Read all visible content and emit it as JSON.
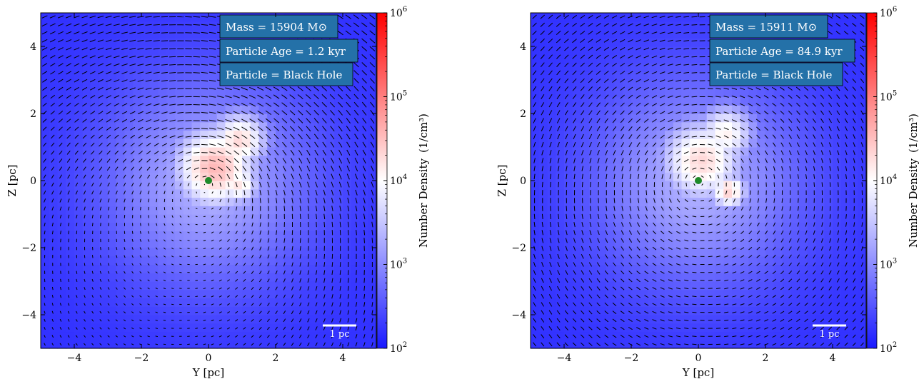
{
  "chart_data": [
    {
      "type": "heatmap",
      "title": "",
      "xlabel": "Y [pc]",
      "ylabel": "Z [pc]",
      "xlim": [
        -5,
        5
      ],
      "ylim": [
        -5,
        5
      ],
      "xticks": [
        -4,
        -2,
        0,
        2,
        4
      ],
      "yticks": [
        -4,
        -2,
        0,
        2,
        4
      ],
      "xtick_labels": [
        "−4",
        "−2",
        "0",
        "2",
        "4"
      ],
      "ytick_labels": [
        "−4",
        "−2",
        "0",
        "2",
        "4"
      ],
      "colorbar": {
        "label": "Number Density",
        "unit": "(1/cm³)",
        "scale": "log",
        "range": [
          100,
          1000000
        ],
        "ticks": [
          100,
          1000,
          10000,
          100000,
          1000000
        ],
        "tick_base": "10",
        "tick_exponents": [
          "2",
          "3",
          "4",
          "5",
          "6"
        ],
        "colormap": "bwr",
        "color_low": "#1a1aff",
        "color_mid": "#ffffff",
        "color_high": "#ff0000"
      },
      "annotations": [
        "Mass = 15904 M⊙",
        "Particle Age = 1.2 kyr",
        "Particle = Black Hole"
      ],
      "annotation_color": "#2471a8",
      "scale_bar": "1 pc",
      "particle": {
        "x": 0,
        "y": 0,
        "color": "#1f8a2a"
      },
      "density_peaks": [
        {
          "x": 0.2,
          "y": 0.4,
          "log_n": 4.55,
          "spread": 1.0
        },
        {
          "x": 0.9,
          "y": 1.2,
          "log_n": 4.3,
          "spread": 0.7
        },
        {
          "x": 0.9,
          "y": -0.1,
          "log_n": 4.2,
          "spread": 0.5
        }
      ],
      "background_log_n": 2.2,
      "grid": false,
      "flow": "velocity field arrows circulating around the black hole"
    },
    {
      "type": "heatmap",
      "title": "",
      "xlabel": "Y [pc]",
      "ylabel": "Z [pc]",
      "xlim": [
        -5,
        5
      ],
      "ylim": [
        -5,
        5
      ],
      "xticks": [
        -4,
        -2,
        0,
        2,
        4
      ],
      "yticks": [
        -4,
        -2,
        0,
        2,
        4
      ],
      "xtick_labels": [
        "−4",
        "−2",
        "0",
        "2",
        "4"
      ],
      "ytick_labels": [
        "−4",
        "−2",
        "0",
        "2",
        "4"
      ],
      "colorbar": {
        "label": "Number Density",
        "unit": "(1/cm³)",
        "scale": "log",
        "range": [
          100,
          1000000
        ],
        "ticks": [
          100,
          1000,
          10000,
          100000,
          1000000
        ],
        "tick_base": "10",
        "tick_exponents": [
          "2",
          "3",
          "4",
          "5",
          "6"
        ],
        "colormap": "bwr",
        "color_low": "#1a1aff",
        "color_mid": "#ffffff",
        "color_high": "#ff0000"
      },
      "annotations": [
        "Mass = 15911 M⊙",
        "Particle Age = 84.9 kyr",
        "Particle = Black Hole"
      ],
      "annotation_color": "#2471a8",
      "scale_bar": "1 pc",
      "particle": {
        "x": 0,
        "y": 0,
        "color": "#1f8a2a"
      },
      "density_peaks": [
        {
          "x": 0.1,
          "y": 0.6,
          "log_n": 4.3,
          "spread": 1.0
        },
        {
          "x": 0.8,
          "y": 1.4,
          "log_n": 4.1,
          "spread": 0.7
        },
        {
          "x": 0.9,
          "y": -0.3,
          "log_n": 4.35,
          "spread": 0.45
        }
      ],
      "background_log_n": 2.2,
      "grid": false,
      "flow": "velocity field arrows circulating around the black hole"
    }
  ]
}
